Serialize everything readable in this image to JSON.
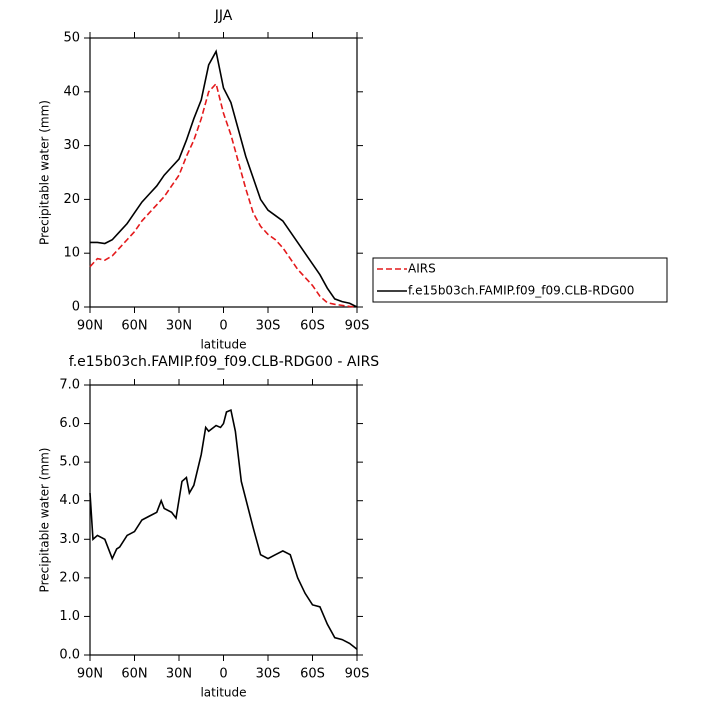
{
  "chart_data": [
    {
      "type": "line",
      "title": "JJA",
      "xlabel": "latitude",
      "ylabel": "Precipitable water (mm)",
      "x": [
        90,
        85,
        80,
        75,
        70,
        65,
        60,
        55,
        50,
        45,
        40,
        35,
        30,
        25,
        20,
        15,
        10,
        5,
        0,
        -5,
        -10,
        -15,
        -20,
        -25,
        -30,
        -35,
        -40,
        -45,
        -50,
        -55,
        -60,
        -65,
        -70,
        -75,
        -80,
        -85,
        -90
      ],
      "series": [
        {
          "name": "AIRS",
          "color": "#e41a1c",
          "line_style": "dashed",
          "values": [
            7.5,
            9,
            8.7,
            9.5,
            11,
            12.5,
            14,
            16,
            17.5,
            19,
            20.5,
            22.5,
            24.5,
            28,
            31,
            35,
            40,
            41.5,
            36,
            32,
            27,
            22,
            17.5,
            15,
            13.5,
            12.5,
            11,
            9,
            7,
            5.5,
            4,
            2,
            0.8,
            0.5,
            0.3,
            0.1,
            0
          ]
        },
        {
          "name": "f.e15b03ch.FAMIP.f09_f09.CLB-RDG00",
          "color": "#000000",
          "line_style": "solid",
          "values": [
            12,
            12,
            11.8,
            12.5,
            14,
            15.5,
            17.5,
            19.5,
            21,
            22.5,
            24.5,
            26,
            27.5,
            31,
            35,
            38.5,
            45,
            47.5,
            40.7,
            38,
            33,
            28,
            24,
            20,
            18,
            17,
            16,
            14,
            12,
            10,
            8,
            6,
            3.5,
            1.5,
            1,
            0.7,
            0
          ]
        }
      ],
      "xlim": [
        90,
        -90
      ],
      "xticks": [
        {
          "value": 90,
          "label": "90N"
        },
        {
          "value": 60,
          "label": "60N"
        },
        {
          "value": 30,
          "label": "30N"
        },
        0,
        {
          "value": -30,
          "label": "30S"
        },
        {
          "value": -60,
          "label": "60S"
        },
        {
          "value": -90,
          "label": "90S"
        }
      ],
      "ylim": [
        0,
        50
      ],
      "yticks": [
        0,
        10,
        20,
        30,
        40,
        50
      ],
      "legend": "right"
    },
    {
      "type": "line",
      "title": "f.e15b03ch.FAMIP.f09_f09.CLB-RDG00 - AIRS",
      "xlabel": "latitude",
      "ylabel": "Precipitable water (mm)",
      "x": [
        90,
        88,
        85,
        80,
        75,
        72,
        70,
        65,
        60,
        55,
        50,
        45,
        42,
        40,
        35,
        32,
        28,
        25,
        23,
        20,
        15,
        12,
        10,
        5,
        2,
        0,
        -2,
        -5,
        -8,
        -12,
        -20,
        -25,
        -30,
        -35,
        -40,
        -45,
        -50,
        -55,
        -60,
        -65,
        -70,
        -75,
        -80,
        -85,
        -90
      ],
      "series": [
        {
          "color": "#000000",
          "line_style": "solid",
          "values": [
            4.2,
            3.0,
            3.1,
            3.0,
            2.5,
            2.75,
            2.8,
            3.1,
            3.2,
            3.5,
            3.6,
            3.7,
            4.0,
            3.8,
            3.7,
            3.55,
            4.5,
            4.6,
            4.2,
            4.4,
            5.2,
            5.9,
            5.8,
            5.95,
            5.9,
            6.0,
            6.3,
            6.35,
            5.8,
            4.5,
            3.3,
            2.6,
            2.5,
            2.6,
            2.7,
            2.6,
            2.0,
            1.6,
            1.3,
            1.25,
            0.8,
            0.45,
            0.4,
            0.3,
            0.15
          ]
        }
      ],
      "xlim": [
        90,
        -90
      ],
      "xticks": [
        {
          "value": 90,
          "label": "90N"
        },
        {
          "value": 60,
          "label": "60N"
        },
        {
          "value": 30,
          "label": "30N"
        },
        0,
        {
          "value": -30,
          "label": "30S"
        },
        {
          "value": -60,
          "label": "60S"
        },
        {
          "value": -90,
          "label": "90S"
        }
      ],
      "ylim": [
        0,
        7
      ],
      "yticks": [
        {
          "value": 0,
          "label": "0.0"
        },
        {
          "value": 1,
          "label": "1.0"
        },
        {
          "value": 2,
          "label": "2.0"
        },
        {
          "value": 3,
          "label": "3.0"
        },
        {
          "value": 4,
          "label": "4.0"
        },
        {
          "value": 5,
          "label": "5.0"
        },
        {
          "value": 6,
          "label": "6.0"
        },
        {
          "value": 7,
          "label": "7.0"
        }
      ]
    }
  ]
}
